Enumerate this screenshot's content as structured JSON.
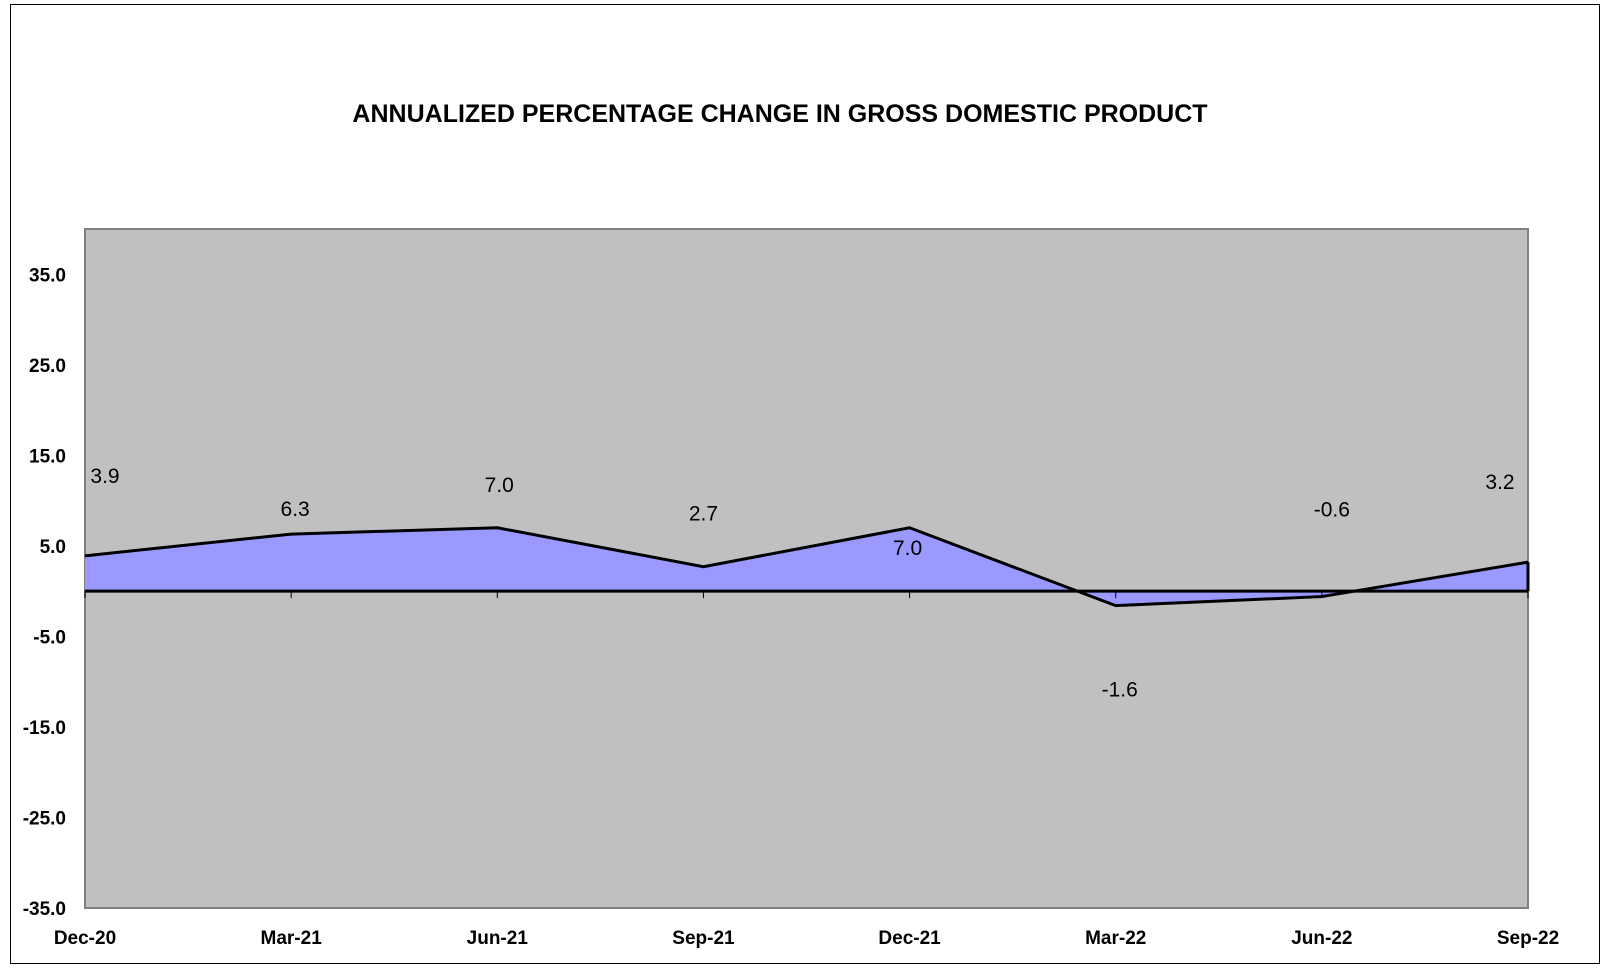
{
  "chart_data": {
    "type": "area",
    "title": "ANNUALIZED PERCENTAGE CHANGE IN GROSS DOMESTIC PRODUCT",
    "xlabel": "",
    "ylabel": "",
    "categories": [
      "Dec-20",
      "Mar-21",
      "Jun-21",
      "Sep-21",
      "Dec-21",
      "Mar-22",
      "Jun-22",
      "Sep-22"
    ],
    "values": [
      3.9,
      6.3,
      7.0,
      2.7,
      7.0,
      -1.6,
      -0.6,
      3.2
    ],
    "data_labels": [
      "3.9",
      "6.3",
      "7.0",
      "2.7",
      "7.0",
      "-1.6",
      "-0.6",
      "3.2"
    ],
    "ylim": [
      -35.0,
      40.0
    ],
    "y_ticks": [
      "35.0",
      "25.0",
      "15.0",
      "5.0",
      "-5.0",
      "-15.0",
      "-25.0",
      "-35.0"
    ],
    "y_tick_values": [
      35,
      25,
      15,
      5,
      -5,
      -15,
      -25,
      -35
    ],
    "grid": false,
    "legend": "none",
    "colors": {
      "plot_background": "#c0c0c0",
      "area_fill": "#9999ff",
      "line": "#000000",
      "axis": "#808080"
    }
  }
}
